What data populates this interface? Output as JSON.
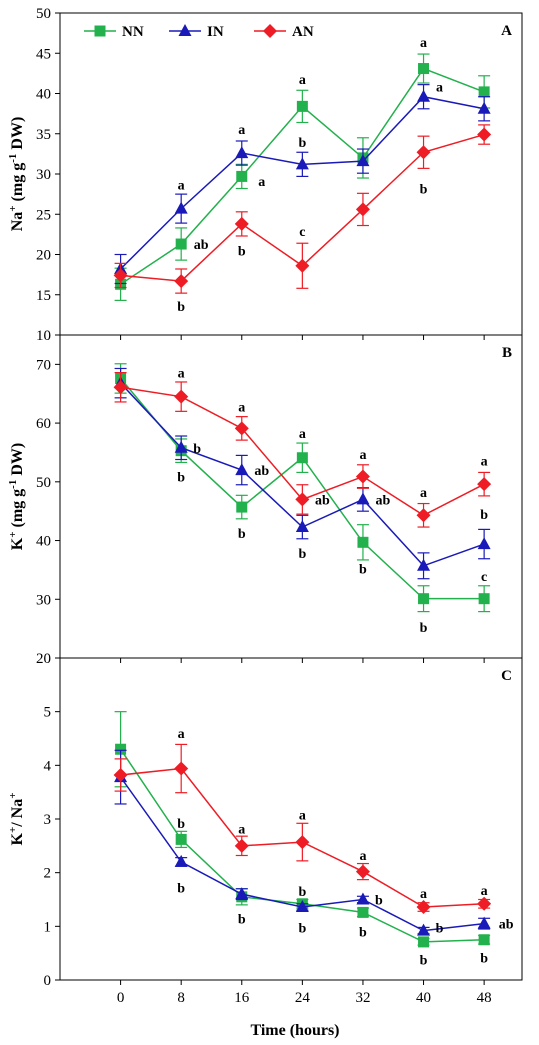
{
  "colors": {
    "NN": "#22b14c",
    "IN": "#1a1ab8",
    "AN": "#ee1c24"
  },
  "x_label": "Time (hours)",
  "legend": [
    {
      "key": "NN",
      "label": "NN",
      "marker": "square"
    },
    {
      "key": "IN",
      "label": "IN",
      "marker": "triangle"
    },
    {
      "key": "AN",
      "label": "AN",
      "marker": "diamond"
    }
  ],
  "chart_data": [
    {
      "type": "line",
      "panel_label": "A",
      "ylabel_main": "Na",
      "ylabel_sup1": "+",
      "ylabel_mid": " (mg g",
      "ylabel_sup2": "-1",
      "ylabel_end": " DW)",
      "x": [
        0,
        8,
        16,
        24,
        32,
        40,
        48
      ],
      "xlim": [
        -8,
        53
      ],
      "ylim": [
        10,
        50
      ],
      "yticks": [
        10,
        15,
        20,
        25,
        30,
        35,
        40,
        45,
        50
      ],
      "series": [
        {
          "key": "NN",
          "values": [
            16.3,
            21.3,
            29.7,
            38.4,
            32.0,
            43.1,
            40.2
          ],
          "errors": [
            2.0,
            2.0,
            1.5,
            2.0,
            2.5,
            1.8,
            2.0
          ]
        },
        {
          "key": "IN",
          "values": [
            18.2,
            25.7,
            32.6,
            31.2,
            31.6,
            39.6,
            38.1
          ],
          "errors": [
            1.8,
            1.8,
            1.5,
            1.5,
            1.5,
            1.5,
            1.5
          ]
        },
        {
          "key": "AN",
          "values": [
            17.4,
            16.7,
            23.8,
            18.6,
            25.6,
            32.7,
            34.9
          ],
          "errors": [
            1.5,
            1.5,
            1.5,
            2.8,
            2.0,
            2.0,
            1.2
          ]
        }
      ],
      "annotations": [
        {
          "x": 8,
          "y": 28.7,
          "dx": 0,
          "text": "a"
        },
        {
          "x": 8,
          "y": 21.3,
          "dx": 20,
          "text": "ab"
        },
        {
          "x": 8,
          "y": 13.6,
          "dx": 0,
          "text": "b"
        },
        {
          "x": 16,
          "y": 35.6,
          "dx": 0,
          "text": "a"
        },
        {
          "x": 16,
          "y": 29.1,
          "dx": 20,
          "text": "a"
        },
        {
          "x": 16,
          "y": 20.5,
          "dx": 0,
          "text": "b"
        },
        {
          "x": 24,
          "y": 41.8,
          "dx": 0,
          "text": "a"
        },
        {
          "x": 24,
          "y": 34.0,
          "dx": 0,
          "text": "b"
        },
        {
          "x": 24,
          "y": 22.9,
          "dx": 0,
          "text": "c"
        },
        {
          "x": 40,
          "y": 46.4,
          "dx": 0,
          "text": "a"
        },
        {
          "x": 40,
          "y": 40.9,
          "dx": 16,
          "text": "a"
        },
        {
          "x": 40,
          "y": 28.2,
          "dx": 0,
          "text": "b"
        }
      ]
    },
    {
      "type": "line",
      "panel_label": "B",
      "ylabel_main": "K",
      "ylabel_sup1": "+",
      "ylabel_mid": " (mg g",
      "ylabel_sup2": "-1",
      "ylabel_end": " DW)",
      "x": [
        0,
        8,
        16,
        24,
        32,
        40,
        48
      ],
      "xlim": [
        -8,
        53
      ],
      "ylim": [
        20,
        75
      ],
      "yticks": [
        20,
        30,
        40,
        50,
        60,
        70
      ],
      "series": [
        {
          "key": "NN",
          "values": [
            67.6,
            55.3,
            45.7,
            54.1,
            39.7,
            30.1,
            30.1
          ],
          "errors": [
            2.5,
            2.0,
            2.0,
            2.5,
            3.0,
            2.2,
            2.2
          ]
        },
        {
          "key": "IN",
          "values": [
            66.8,
            55.8,
            52.0,
            42.3,
            47.0,
            35.7,
            39.4
          ],
          "errors": [
            2.5,
            2.0,
            2.5,
            2.0,
            2.0,
            2.2,
            2.5
          ]
        },
        {
          "key": "AN",
          "values": [
            66.1,
            64.5,
            59.1,
            47.0,
            50.9,
            44.3,
            49.6
          ],
          "errors": [
            2.5,
            2.5,
            2.0,
            2.5,
            2.0,
            2.0,
            2.0
          ]
        }
      ],
      "annotations": [
        {
          "x": 8,
          "y": 68.6,
          "dx": 0,
          "text": "a"
        },
        {
          "x": 8,
          "y": 55.8,
          "dx": 16,
          "text": "b"
        },
        {
          "x": 8,
          "y": 50.9,
          "dx": 0,
          "text": "b"
        },
        {
          "x": 16,
          "y": 62.8,
          "dx": 0,
          "text": "a"
        },
        {
          "x": 16,
          "y": 52.0,
          "dx": 20,
          "text": "ab"
        },
        {
          "x": 16,
          "y": 41.3,
          "dx": 0,
          "text": "b"
        },
        {
          "x": 24,
          "y": 58.3,
          "dx": 0,
          "text": "a"
        },
        {
          "x": 24,
          "y": 47.0,
          "dx": 20,
          "text": "ab"
        },
        {
          "x": 24,
          "y": 37.9,
          "dx": 0,
          "text": "b"
        },
        {
          "x": 32,
          "y": 54.7,
          "dx": 0,
          "text": "a"
        },
        {
          "x": 32,
          "y": 47.0,
          "dx": 20,
          "text": "ab"
        },
        {
          "x": 32,
          "y": 35.2,
          "dx": 0,
          "text": "b"
        },
        {
          "x": 40,
          "y": 48.3,
          "dx": 0,
          "text": "a"
        },
        {
          "x": 40,
          "y": 25.3,
          "dx": 0,
          "text": "b"
        },
        {
          "x": 48,
          "y": 53.6,
          "dx": 0,
          "text": "a"
        },
        {
          "x": 48,
          "y": 44.5,
          "dx": 0,
          "text": "b"
        },
        {
          "x": 48,
          "y": 34.0,
          "dx": 0,
          "text": "c"
        }
      ]
    },
    {
      "type": "line",
      "panel_label": "C",
      "ylabel_main": "K",
      "ylabel_sup1": "+",
      "ylabel_mid": "/ Na",
      "ylabel_sup2": "+",
      "ylabel_end": "",
      "x": [
        0,
        8,
        16,
        24,
        32,
        40,
        48
      ],
      "xlim": [
        -8,
        53
      ],
      "ylim": [
        0,
        6
      ],
      "yticks": [
        0,
        1,
        2,
        3,
        4,
        5
      ],
      "series": [
        {
          "key": "NN",
          "values": [
            4.3,
            2.62,
            1.55,
            1.42,
            1.26,
            0.71,
            0.75
          ],
          "errors": [
            0.7,
            0.15,
            0.15,
            0.08,
            0.08,
            0.06,
            0.08
          ]
        },
        {
          "key": "IN",
          "values": [
            3.78,
            2.2,
            1.6,
            1.36,
            1.5,
            0.92,
            1.05
          ],
          "errors": [
            0.5,
            0.08,
            0.1,
            0.06,
            0.06,
            0.06,
            0.1
          ]
        },
        {
          "key": "AN",
          "values": [
            3.82,
            3.94,
            2.5,
            2.57,
            2.02,
            1.36,
            1.42
          ],
          "errors": [
            0.3,
            0.45,
            0.18,
            0.35,
            0.15,
            0.08,
            0.08
          ]
        }
      ],
      "annotations": [
        {
          "x": 8,
          "y": 4.6,
          "dx": 0,
          "text": "a"
        },
        {
          "x": 8,
          "y": 2.93,
          "dx": 0,
          "text": "b"
        },
        {
          "x": 8,
          "y": 1.72,
          "dx": 0,
          "text": "b"
        },
        {
          "x": 16,
          "y": 2.82,
          "dx": 0,
          "text": "a"
        },
        {
          "x": 16,
          "y": 1.15,
          "dx": 0,
          "text": "b"
        },
        {
          "x": 24,
          "y": 3.08,
          "dx": 0,
          "text": "a"
        },
        {
          "x": 24,
          "y": 1.66,
          "dx": 0,
          "text": "b"
        },
        {
          "x": 24,
          "y": 0.98,
          "dx": 0,
          "text": "b"
        },
        {
          "x": 32,
          "y": 2.33,
          "dx": 0,
          "text": "a"
        },
        {
          "x": 32,
          "y": 1.5,
          "dx": 16,
          "text": "b"
        },
        {
          "x": 32,
          "y": 0.9,
          "dx": 0,
          "text": "b"
        },
        {
          "x": 40,
          "y": 1.62,
          "dx": 0,
          "text": "a"
        },
        {
          "x": 40,
          "y": 0.98,
          "dx": 16,
          "text": "b"
        },
        {
          "x": 40,
          "y": 0.38,
          "dx": 0,
          "text": "b"
        },
        {
          "x": 48,
          "y": 1.68,
          "dx": 0,
          "text": "a"
        },
        {
          "x": 48,
          "y": 1.05,
          "dx": 22,
          "text": "ab"
        },
        {
          "x": 48,
          "y": 0.42,
          "dx": 0,
          "text": "b"
        }
      ]
    }
  ]
}
